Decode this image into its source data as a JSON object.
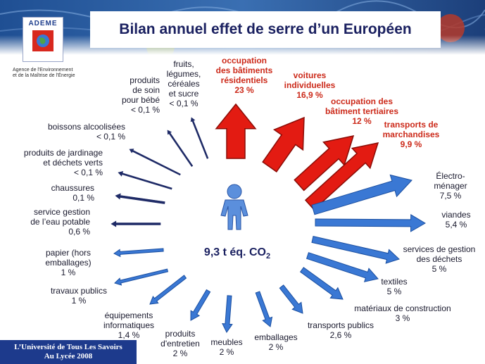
{
  "title": "Bilan annuel effet de serre d’un Européen",
  "logo": {
    "name": "ADEME",
    "icon": "globe-icon"
  },
  "agency": {
    "line1": "Agence de l'Environnement",
    "line2": "et de la Maîtrise de l'Énergie"
  },
  "footer": {
    "line1": "L’Université de Tous Les Savoirs",
    "line2": "Au Lycée 2008"
  },
  "center": {
    "total": "9,3 t éq. CO",
    "subscript": "2",
    "icon": "person-icon"
  },
  "colors": {
    "major": "#e31b12",
    "minor": "#3a78d4",
    "title": "#1a2060"
  },
  "categories": [
    {
      "id": "residentiel",
      "text": "occupation\ndes bâtiments\nrésidentiels\n23 %",
      "share": 23,
      "emphasis": true
    },
    {
      "id": "voitures",
      "text": "voitures\nindividuelles\n16,9 %",
      "share": 16.9,
      "emphasis": true
    },
    {
      "id": "tertiaire",
      "text": "occupation des\nbâtiment tertiaires\n12 %",
      "share": 12,
      "emphasis": true
    },
    {
      "id": "marchandises",
      "text": "transports de\nmarchandises\n9,9 %",
      "share": 9.9,
      "emphasis": true
    },
    {
      "id": "electromenager",
      "text": "Électro-\nménager\n7,5 %",
      "share": 7.5,
      "emphasis": false
    },
    {
      "id": "viandes",
      "text": "viandes\n5,4 %",
      "share": 5.4,
      "emphasis": false
    },
    {
      "id": "dechets",
      "text": "services de gestion\ndes déchets\n5 %",
      "share": 5,
      "emphasis": false
    },
    {
      "id": "textiles",
      "text": "textiles\n5 %",
      "share": 5,
      "emphasis": false
    },
    {
      "id": "materiaux",
      "text": "matériaux de construction\n3 %",
      "share": 3,
      "emphasis": false
    },
    {
      "id": "transports-publics",
      "text": "transports publics\n2,6 %",
      "share": 2.6,
      "emphasis": false
    },
    {
      "id": "emballages",
      "text": "emballages\n2 %",
      "share": 2,
      "emphasis": false
    },
    {
      "id": "meubles",
      "text": "meubles\n2 %",
      "share": 2,
      "emphasis": false
    },
    {
      "id": "entretien",
      "text": "produits\nd'entretien\n2 %",
      "share": 2,
      "emphasis": false
    },
    {
      "id": "informatique",
      "text": "équipements\ninformatiques\n1,4 %",
      "share": 1.4,
      "emphasis": false
    },
    {
      "id": "travaux-publics",
      "text": "travaux publics\n1 %",
      "share": 1,
      "emphasis": false
    },
    {
      "id": "papier",
      "text": "papier (hors\nemballages)\n1 %",
      "share": 1,
      "emphasis": false
    },
    {
      "id": "eau",
      "text": "service gestion\nde l’eau potable\n0,6 %",
      "share": 0.6,
      "emphasis": false
    },
    {
      "id": "chaussures",
      "text": "chaussures\n0,1 %",
      "share": 0.1,
      "emphasis": false
    },
    {
      "id": "jardinage",
      "text": "produits de jardinage\net déchets verts\n< 0,1 %",
      "share": "< 0,1",
      "emphasis": false
    },
    {
      "id": "alcool",
      "text": "boissons alcoolisées\n< 0,1 %",
      "share": "< 0,1",
      "emphasis": false
    },
    {
      "id": "bebe",
      "text": "produits\nde soin\npour bébé\n< 0,1 %",
      "share": "< 0,1",
      "emphasis": false
    },
    {
      "id": "fruits",
      "text": "fruits,\nlégumes,\ncéréales\net sucre\n< 0,1 %",
      "share": "< 0,1",
      "emphasis": false
    }
  ]
}
